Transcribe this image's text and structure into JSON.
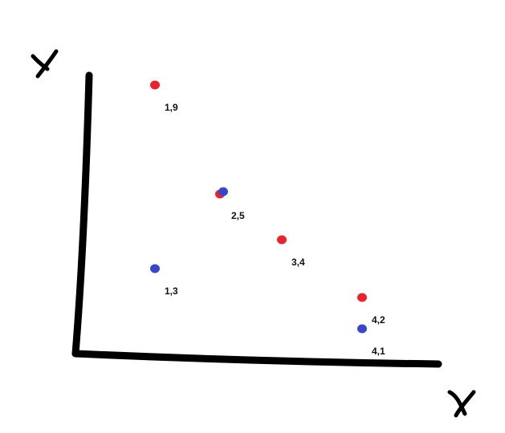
{
  "chart_data": {
    "type": "scatter",
    "title": "",
    "xlabel": "x",
    "ylabel": "y",
    "grid": false,
    "legend": "none",
    "colors": {
      "red": "#e8232b",
      "blue": "#3a46c8",
      "axis": "#000000"
    },
    "points": [
      {
        "label": "1,9",
        "color": "red",
        "x": 1,
        "y": 9
      },
      {
        "label": "2,5",
        "color": "red",
        "x": 2,
        "y": 5
      },
      {
        "label": "2,5",
        "color": "blue",
        "x": 2,
        "y": 5
      },
      {
        "label": "3,4",
        "color": "red",
        "x": 3,
        "y": 4
      },
      {
        "label": "1,3",
        "color": "blue",
        "x": 1,
        "y": 3
      },
      {
        "label": "4,2",
        "color": "red",
        "x": 4,
        "y": 2
      },
      {
        "label": "4,1",
        "color": "blue",
        "x": 4,
        "y": 1
      }
    ]
  }
}
